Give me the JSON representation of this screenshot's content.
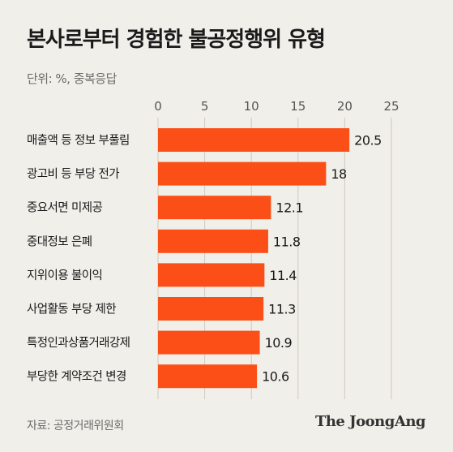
{
  "title": "본사로부터 경험한 불공정행위 유형",
  "unit_note": "단위: %, 중복응답",
  "source": "자료: 공정거래위원회",
  "brand": "The JoongAng",
  "colors": {
    "bar": "#fc4f17",
    "background": "#f1efe9",
    "grid": "#cfcac0"
  },
  "chart_data": {
    "type": "bar",
    "orientation": "horizontal",
    "categories": [
      "매출액 등 정보 부풀림",
      "광고비 등 부당 전가",
      "중요서면 미제공",
      "중대정보 은폐",
      "지위이용 불이익",
      "사업활동 부당 제한",
      "특정인과상품거래강제",
      "부당한 계약조건 변경"
    ],
    "values": [
      20.5,
      18,
      12.1,
      11.8,
      11.4,
      11.3,
      10.9,
      10.6
    ],
    "value_labels": [
      "20.5",
      "18",
      "12.1",
      "11.8",
      "11.4",
      "11.3",
      "10.9",
      "10.6"
    ],
    "xlim": [
      0,
      25
    ],
    "xticks": [
      "0",
      "5",
      "10",
      "15",
      "20",
      "25"
    ],
    "grid": true,
    "xlabel": "",
    "ylabel": ""
  }
}
